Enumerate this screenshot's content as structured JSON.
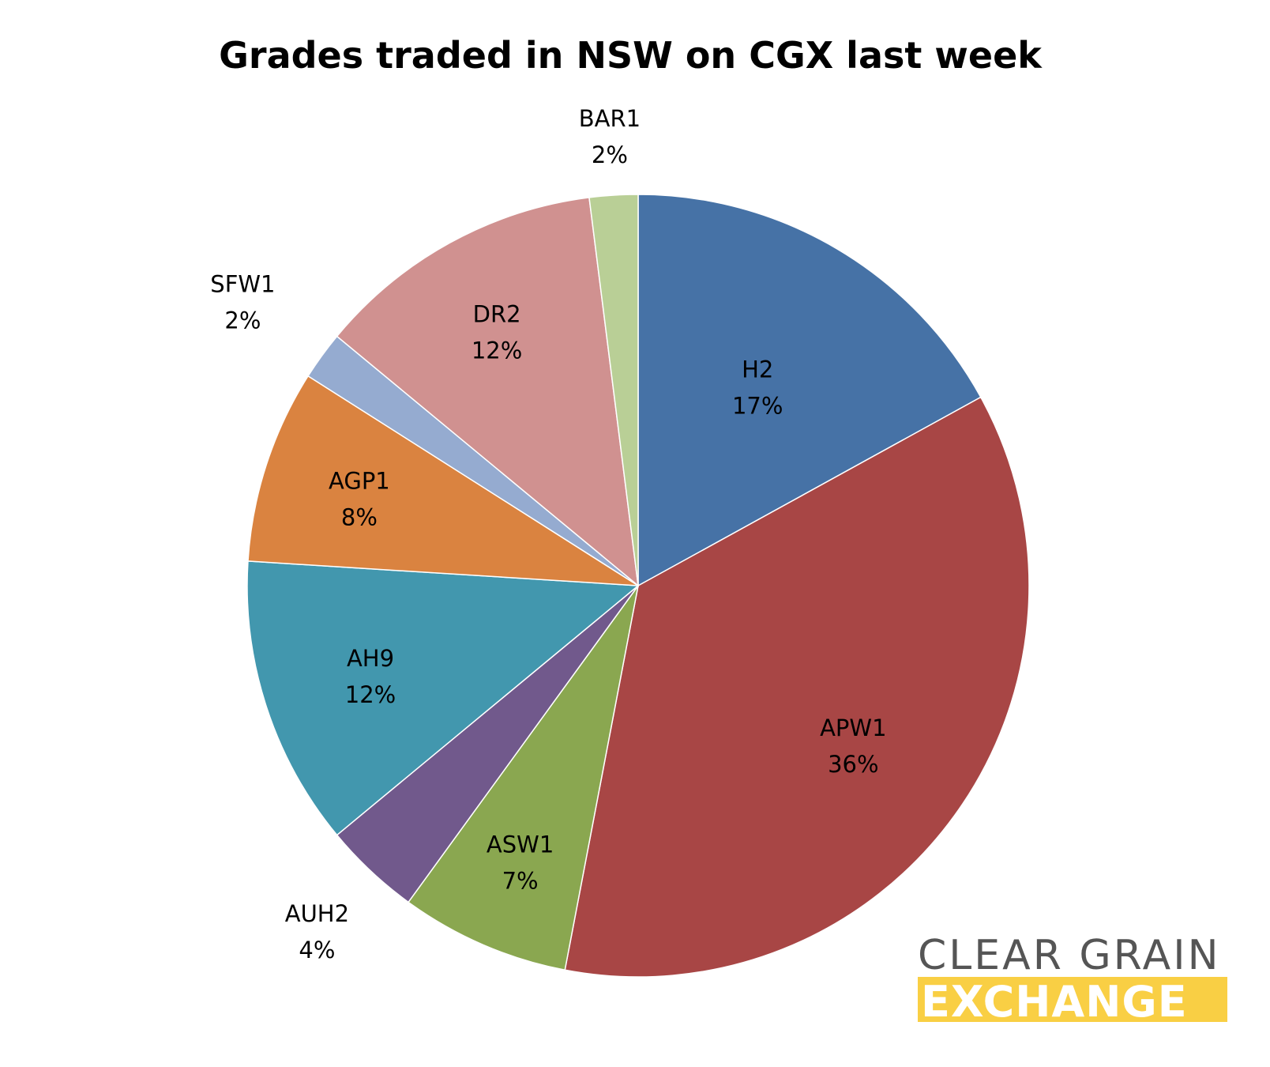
{
  "chart_data": {
    "type": "pie",
    "title": "Grades traded in NSW on CGX last week",
    "slices": [
      {
        "label": "H2",
        "value": 17,
        "display": "17%",
        "color": "#4672a6"
      },
      {
        "label": "APW1",
        "value": 36,
        "display": "36%",
        "color": "#a84645"
      },
      {
        "label": "ASW1",
        "value": 7,
        "display": "7%",
        "color": "#8aa750"
      },
      {
        "label": "AUH2",
        "value": 4,
        "display": "4%",
        "color": "#71598c"
      },
      {
        "label": "AH9",
        "value": 12,
        "display": "12%",
        "color": "#4297ae"
      },
      {
        "label": "AGP1",
        "value": 8,
        "display": "8%",
        "color": "#da8340"
      },
      {
        "label": "SFW1",
        "value": 2,
        "display": "2%",
        "color": "#95abd0"
      },
      {
        "label": "DR2",
        "value": 12,
        "display": "12%",
        "color": "#d09190"
      },
      {
        "label": "BAR1",
        "value": 2,
        "display": "2%",
        "color": "#b9cf96"
      }
    ],
    "start_angle": "12 o'clock",
    "direction": "clockwise",
    "legend": "none"
  },
  "logo": {
    "line1": "CLEAR GRAIN",
    "line2": "EXCHANGE",
    "line2_background": "#f9cf44"
  }
}
